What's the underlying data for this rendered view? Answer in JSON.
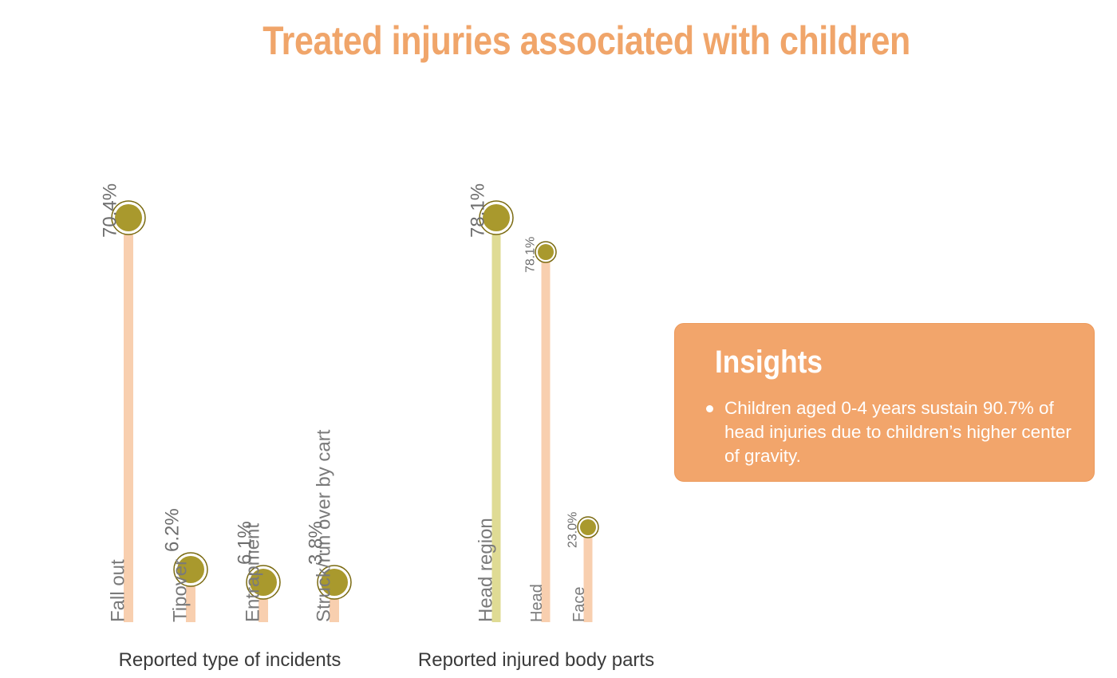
{
  "title": "Treated injuries associated with children",
  "colors": {
    "title": "#f0a56a",
    "bar_default": "#f8cfaf",
    "bar_highlight": "#dfdb94",
    "marker_fill": "#a9992d",
    "marker_ring": "#7a6a10",
    "insights_bg": "#f2a56b"
  },
  "chart_data": [
    {
      "type": "lollipop",
      "title": "",
      "xlabel": "Reported type of incidents",
      "ylabel": "",
      "unit": "%",
      "ylim": [
        0,
        78.1
      ],
      "grid": false,
      "categories": [
        "Fall out",
        "Tipover",
        "Entrapment",
        "Struck/run over by cart"
      ],
      "values": [
        70.4,
        6.2,
        6.1,
        3.8
      ],
      "value_labels": [
        "70.4%",
        "6.2%",
        "6.1%",
        "3.8%"
      ]
    },
    {
      "type": "lollipop",
      "title": "",
      "xlabel": "Reported injured body parts",
      "ylabel": "",
      "unit": "%",
      "ylim": [
        0,
        78.1
      ],
      "grid": false,
      "categories": [
        "Head region",
        "Head",
        "Face"
      ],
      "values": [
        78.1,
        78.1,
        23.0
      ],
      "value_labels": [
        "78.1%",
        "78.1%",
        "23.0%"
      ],
      "highlight": [
        "Head region"
      ]
    }
  ],
  "insights": {
    "title": "Insights",
    "items": [
      "Children aged 0-4 years sustain 90.7% of head injuries due to children’s higher center of gravity."
    ]
  }
}
